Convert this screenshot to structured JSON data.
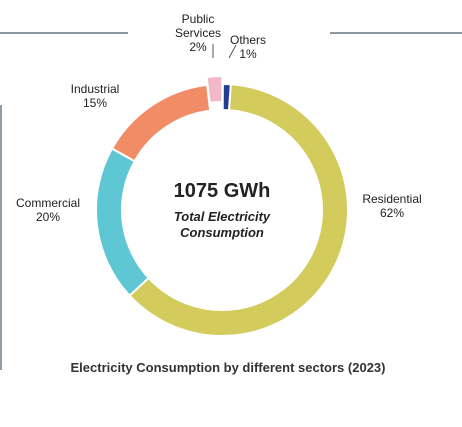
{
  "chart_data": {
    "type": "donut",
    "title": "Electricity Consumption by different sectors (2023)",
    "center_value": "1075 GWh",
    "center_label": "Total Electricity Consumption",
    "categories": [
      "Residential",
      "Commercial",
      "Industrial",
      "Public Services",
      "Others"
    ],
    "values": [
      62,
      20,
      15,
      2,
      1
    ],
    "value_labels": [
      "62%",
      "20%",
      "15%",
      "2%",
      "1%"
    ],
    "colors": [
      "#d3cb5c",
      "#5fc6d3",
      "#f08c66",
      "#f3b8c7",
      "#213f8e"
    ],
    "exploded": "Public Services"
  }
}
